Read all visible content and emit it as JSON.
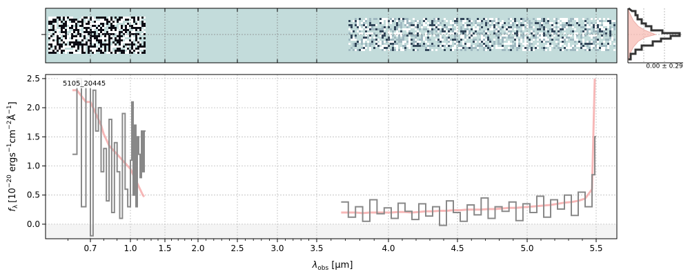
{
  "chart_data": {
    "type": "line",
    "spectrum_label": "5105_20445",
    "ylabel_base": "f",
    "ylabel_sub": "λ",
    "ylabel_units": "[10",
    "ylabel_exp1": "−20",
    "ylabel_mid": " ergs",
    "ylabel_exp2": "−1",
    "ylabel_mid2": "cm",
    "ylabel_exp3": "−2",
    "ylabel_mid3": "Å",
    "ylabel_exp4": "−1",
    "ylabel_end": "]",
    "xlabel_base": "λ",
    "xlabel_sub": "obs",
    "xlabel_units": " [μm]",
    "xticks": [
      "0.7",
      "1.0",
      "1.5",
      "2.0",
      "2.5",
      "3.0",
      "3.5",
      "4.0",
      "4.5",
      "5.0",
      "5.5"
    ],
    "yticks": [
      "0.0",
      "0.5",
      "1.0",
      "1.5",
      "2.0",
      "2.5"
    ],
    "ylim": [
      -0.25,
      2.57
    ],
    "xaxis_scale": "mixed (compressed below 1.5 μm)",
    "grid": true,
    "side_panel_label": "0.00 ± 0.29",
    "colors": {
      "data": "#888888",
      "model": "#f4a0a0",
      "image_bg": "#c3dcdb",
      "image_dark": "#1a2a3a",
      "hist_line": "#333333",
      "hist_fill": "#f7b9b0"
    },
    "series": [
      {
        "segment": "blue",
        "x": [
          0.62,
          0.64,
          0.66,
          0.68,
          0.7,
          0.72,
          0.74,
          0.76,
          0.78,
          0.8,
          0.82,
          0.84,
          0.86,
          0.88,
          0.9,
          0.92,
          0.94,
          0.96,
          0.98,
          1.0,
          1.02,
          1.04,
          1.06,
          1.08,
          1.1,
          1.12,
          1.14,
          1.16,
          1.18,
          1.2
        ],
        "flux": [
          1.2,
          2.5,
          0.3,
          2.4,
          -0.2,
          2.3,
          1.6,
          2.0,
          0.9,
          1.3,
          0.4,
          1.8,
          0.2,
          1.4,
          0.9,
          0.1,
          1.9,
          0.6,
          0.3,
          1.1,
          2.1,
          0.5,
          1.7,
          0.3,
          1.5,
          1.2,
          0.8,
          1.6,
          0.9,
          1.6
        ],
        "model": [
          2.3,
          2.3,
          2.2,
          2.1,
          2.1,
          2.0,
          1.9,
          1.8,
          1.7,
          1.55,
          1.45,
          1.35,
          1.3,
          1.25,
          1.2,
          1.15,
          1.1,
          1.05,
          1.0,
          0.95,
          0.9,
          0.85,
          0.8,
          0.75,
          0.7,
          0.65,
          0.6,
          0.55,
          0.5,
          0.47
        ]
      },
      {
        "segment": "red",
        "x": [
          3.67,
          3.72,
          3.77,
          3.82,
          3.87,
          3.92,
          3.97,
          4.02,
          4.07,
          4.12,
          4.17,
          4.22,
          4.27,
          4.32,
          4.37,
          4.42,
          4.47,
          4.52,
          4.57,
          4.62,
          4.67,
          4.72,
          4.77,
          4.82,
          4.87,
          4.92,
          4.97,
          5.02,
          5.07,
          5.12,
          5.17,
          5.22,
          5.27,
          5.32,
          5.37,
          5.42,
          5.47,
          5.49
        ],
        "flux": [
          0.38,
          0.12,
          0.3,
          0.05,
          0.42,
          0.18,
          0.28,
          0.1,
          0.36,
          0.22,
          0.08,
          0.35,
          0.14,
          0.3,
          -0.02,
          0.4,
          0.2,
          0.05,
          0.33,
          0.16,
          0.45,
          0.1,
          0.3,
          0.22,
          0.38,
          0.06,
          0.35,
          0.2,
          0.48,
          0.12,
          0.42,
          0.26,
          0.5,
          0.15,
          0.55,
          0.3,
          0.85,
          1.5
        ],
        "model": [
          0.2,
          0.2,
          0.2,
          0.19,
          0.2,
          0.2,
          0.2,
          0.2,
          0.21,
          0.21,
          0.2,
          0.21,
          0.22,
          0.22,
          0.23,
          0.23,
          0.24,
          0.24,
          0.25,
          0.25,
          0.25,
          0.26,
          0.26,
          0.27,
          0.28,
          0.28,
          0.29,
          0.3,
          0.31,
          0.32,
          0.33,
          0.35,
          0.37,
          0.38,
          0.4,
          0.44,
          0.6,
          2.5
        ]
      }
    ]
  }
}
